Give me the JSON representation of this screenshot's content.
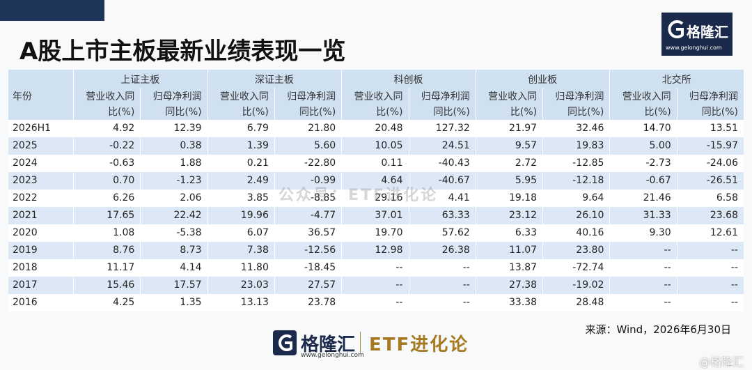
{
  "header": {
    "title": "A股上市主板最新业绩表现一览",
    "logo": "格隆汇",
    "logo_url": "www.gelonghui.com"
  },
  "table": {
    "corner": "年份",
    "groups": [
      {
        "name": "上证主板",
        "columns": [
          [
            "营业收入同",
            "比(%)"
          ],
          [
            "归母净利润",
            "同比(%)"
          ]
        ]
      },
      {
        "name": "深证主板",
        "columns": [
          [
            "营业收入同",
            "比(%)"
          ],
          [
            "归母净利润",
            "同比(%)"
          ]
        ]
      },
      {
        "name": "科创板",
        "columns": [
          [
            "营业收入同",
            "比(%)"
          ],
          [
            "归母净利润",
            "同比(%)"
          ]
        ]
      },
      {
        "name": "创业板",
        "columns": [
          [
            "营业收入同",
            "比(%)"
          ],
          [
            "归母净利润",
            "同比(%)"
          ]
        ]
      },
      {
        "name": "北交所",
        "columns": [
          [
            "营业收入同",
            "比(%)"
          ],
          [
            "归母净利润",
            "同比(%)"
          ]
        ]
      }
    ],
    "rows": [
      {
        "year": "2026H1",
        "values": [
          "4.92",
          "12.39",
          "6.79",
          "21.80",
          "20.48",
          "127.32",
          "21.97",
          "32.46",
          "14.70",
          "13.51"
        ]
      },
      {
        "year": "2025",
        "values": [
          "-0.22",
          "0.38",
          "1.39",
          "5.60",
          "10.05",
          "24.51",
          "9.57",
          "19.83",
          "5.00",
          "-15.97"
        ]
      },
      {
        "year": "2024",
        "values": [
          "-0.63",
          "1.88",
          "0.21",
          "-22.80",
          "0.11",
          "-40.43",
          "2.72",
          "-12.85",
          "-2.73",
          "-24.06"
        ]
      },
      {
        "year": "2023",
        "values": [
          "0.70",
          "-1.23",
          "2.49",
          "-0.99",
          "4.64",
          "-40.67",
          "5.95",
          "-12.18",
          "-0.67",
          "-26.51"
        ]
      },
      {
        "year": "2022",
        "values": [
          "6.26",
          "2.06",
          "3.85",
          "-8.85",
          "29.16",
          "4.41",
          "19.18",
          "9.64",
          "21.46",
          "6.58"
        ]
      },
      {
        "year": "2021",
        "values": [
          "17.65",
          "22.42",
          "19.96",
          "-4.77",
          "37.01",
          "63.33",
          "23.12",
          "26.10",
          "31.33",
          "23.68"
        ]
      },
      {
        "year": "2020",
        "values": [
          "1.08",
          "-5.38",
          "6.07",
          "36.57",
          "19.70",
          "57.62",
          "6.33",
          "40.16",
          "9.30",
          "12.61"
        ]
      },
      {
        "year": "2019",
        "values": [
          "8.76",
          "8.73",
          "7.38",
          "-12.56",
          "12.98",
          "26.38",
          "11.07",
          "23.80",
          "--",
          "--"
        ]
      },
      {
        "year": "2018",
        "values": [
          "11.17",
          "4.14",
          "11.80",
          "-18.45",
          "--",
          "--",
          "13.87",
          "-72.74",
          "--",
          "--"
        ]
      },
      {
        "year": "2017",
        "values": [
          "15.46",
          "17.57",
          "23.03",
          "27.57",
          "--",
          "--",
          "27.38",
          "-19.02",
          "--",
          "--"
        ]
      },
      {
        "year": "2016",
        "values": [
          "4.25",
          "1.35",
          "13.13",
          "23.78",
          "--",
          "--",
          "33.38",
          "28.48",
          "--",
          "--"
        ]
      }
    ]
  },
  "watermark": "公众号：ETF进化论",
  "source": "来源：Wind，2026年6月30日",
  "footer": {
    "logo": "格隆汇",
    "url": "www.gelonghui.com",
    "brand": "ETF进化论"
  },
  "corner_watermark": "@格隆汇"
}
